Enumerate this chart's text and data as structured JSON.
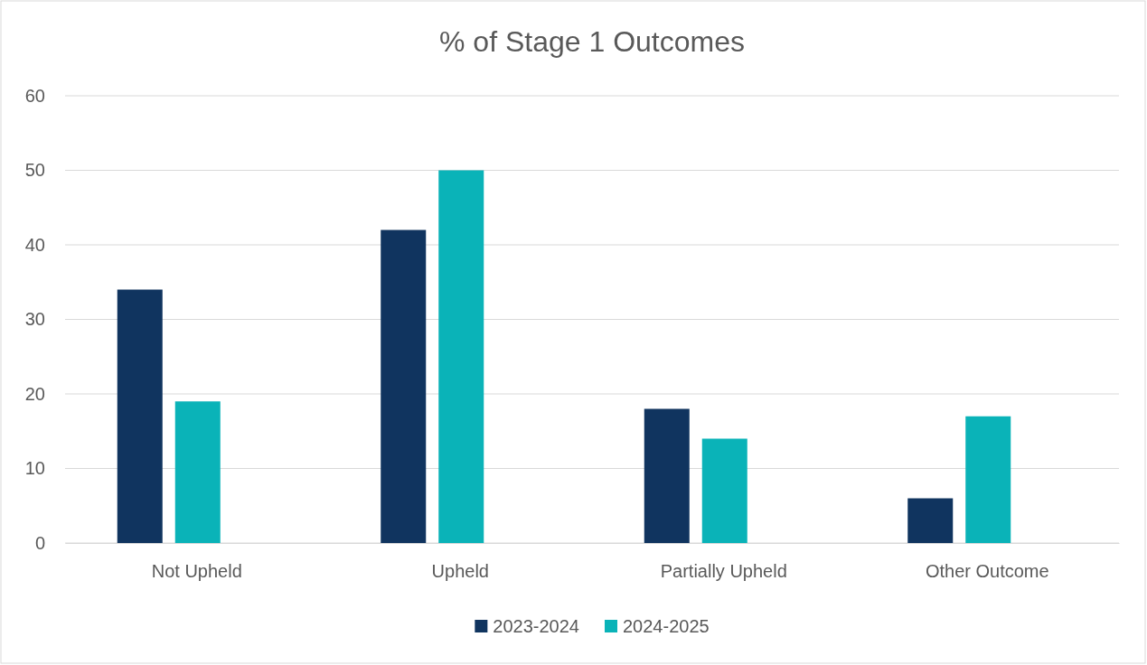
{
  "chart_data": {
    "type": "bar",
    "title": "% of Stage 1 Outcomes",
    "categories": [
      "Not Upheld",
      "Upheld",
      "Partially Upheld",
      "Other Outcome"
    ],
    "series": [
      {
        "name": "2023-2024",
        "color": "#10345f",
        "values": [
          34,
          42,
          18,
          6
        ]
      },
      {
        "name": "2024-2025",
        "color": "#0ab3b8",
        "values": [
          19,
          50,
          14,
          17
        ]
      }
    ],
    "ylim": [
      0,
      60
    ],
    "yticks": [
      0,
      10,
      20,
      30,
      40,
      50,
      60
    ],
    "grid": "y",
    "legend": "bottom"
  }
}
